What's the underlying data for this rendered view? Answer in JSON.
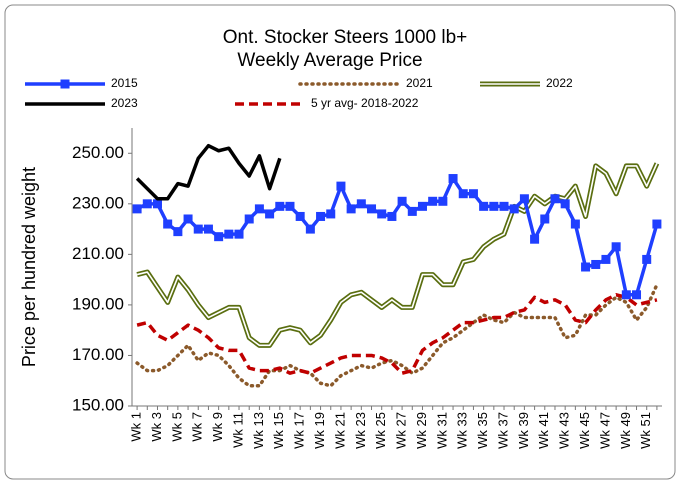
{
  "chart_data": {
    "type": "line",
    "title": [
      "Ont. Stocker Steers 1000 lb+",
      "Weekly Average Price"
    ],
    "y_label": "Price per hundred weight",
    "categories": [
      "Wk 1",
      null,
      "Wk 3",
      null,
      "Wk 5",
      null,
      "Wk 7",
      null,
      "Wk 9",
      null,
      "Wk 11",
      null,
      "Wk 13",
      null,
      "Wk 15",
      null,
      "Wk 17",
      null,
      "Wk 19",
      null,
      "Wk 21",
      null,
      "Wk 23",
      null,
      "Wk 25",
      null,
      "Wk 27",
      null,
      "Wk 29",
      null,
      "Wk 31",
      null,
      "Wk 33",
      null,
      "Wk 35",
      null,
      "Wk 37",
      null,
      "Wk 39",
      null,
      "Wk 41",
      null,
      "Wk 43",
      null,
      "Wk 45",
      null,
      "Wk 47",
      null,
      "Wk 49",
      null,
      "Wk 51",
      null
    ],
    "ylim": [
      150,
      260
    ],
    "yticks": [
      {
        "value": 150,
        "label": "150.00"
      },
      {
        "value": 170,
        "label": "170.00"
      },
      {
        "value": 190,
        "label": "190.00"
      },
      {
        "value": 210,
        "label": "210.00"
      },
      {
        "value": 230,
        "label": "230.00"
      },
      {
        "value": 250,
        "label": "250.00"
      }
    ],
    "series": [
      {
        "name": "2015",
        "color": "#1f3fff",
        "style": "marker",
        "values": [
          228,
          230,
          230,
          222,
          219,
          224,
          220,
          220,
          217,
          218,
          218,
          224,
          228,
          226,
          229,
          229,
          225,
          220,
          225,
          226,
          237,
          228,
          230,
          228,
          226,
          225,
          231,
          227,
          229,
          231,
          231,
          240,
          234,
          234,
          229,
          229,
          229,
          228,
          232,
          216,
          224,
          232,
          230,
          222,
          205,
          206,
          208,
          213,
          194,
          194,
          208,
          222
        ]
      },
      {
        "name": "2021",
        "color": "#8b5a2b",
        "style": "dotted",
        "values": [
          167,
          164,
          164,
          166,
          170,
          174,
          168,
          171,
          170,
          166,
          161,
          158,
          158,
          164,
          164,
          166,
          164,
          163,
          159,
          158,
          162,
          164,
          166,
          165,
          167,
          168,
          166,
          163,
          165,
          170,
          175,
          177,
          180,
          183,
          186,
          184,
          183,
          187,
          185,
          185,
          185,
          185,
          177,
          178,
          186,
          186,
          190,
          193,
          191,
          184,
          189,
          198
        ]
      },
      {
        "name": "2022",
        "color": "#5a6e10",
        "style": "double",
        "values": [
          202,
          203,
          197,
          191,
          201,
          196,
          190,
          185,
          187,
          189,
          189,
          177,
          174,
          174,
          180,
          181,
          180,
          175,
          178,
          184,
          191,
          194,
          195,
          192,
          189,
          192,
          189,
          189,
          202,
          202,
          198,
          198,
          207,
          208,
          213,
          216,
          218,
          229,
          227,
          233,
          230,
          233,
          232,
          237,
          225,
          245,
          242,
          234,
          245,
          245,
          237,
          246
        ]
      },
      {
        "name": "2023",
        "color": "#000000",
        "style": "solid",
        "values": [
          240,
          236,
          232,
          232,
          238,
          237,
          248,
          253,
          251,
          252,
          246,
          241,
          249,
          236,
          248,
          null,
          null,
          null,
          null,
          null,
          null,
          null,
          null,
          null,
          null,
          null,
          null,
          null,
          null,
          null,
          null,
          null,
          null,
          null,
          null,
          null,
          null,
          null,
          null,
          null,
          null,
          null,
          null,
          null,
          null,
          null,
          null,
          null,
          null,
          null,
          null,
          null
        ]
      },
      {
        "name": "5 yr avg- 2018-2022",
        "color": "#c00000",
        "style": "dashed",
        "values": [
          182,
          183,
          178,
          176,
          179,
          182,
          180,
          177,
          173,
          172,
          172,
          165,
          164,
          164,
          165,
          163,
          164,
          163,
          165,
          167,
          169,
          170,
          170,
          170,
          169,
          167,
          163,
          164,
          172,
          175,
          177,
          180,
          183,
          183,
          184,
          185,
          185,
          187,
          188,
          193,
          191,
          192,
          190,
          184,
          183,
          188,
          192,
          194,
          193,
          190,
          191,
          192
        ]
      }
    ]
  }
}
